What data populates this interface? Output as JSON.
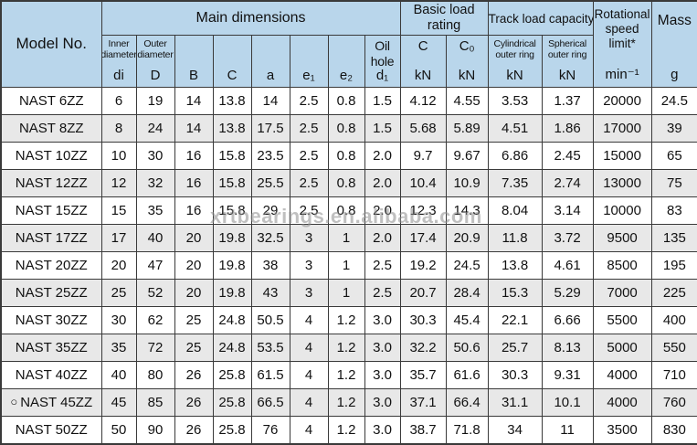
{
  "watermark": "xrtbearings.en.alibaba.com",
  "colors": {
    "header_blue": "#b9d6eb",
    "stripe_gray": "#e8e8e8",
    "grid_line": "#3a3a3a"
  },
  "table": {
    "header": {
      "model_no": "Model No.",
      "main_dimensions": "Main dimensions",
      "basic_load_rating": "Basic load rating",
      "track_load_capacity": "Track load capacity",
      "rotational_speed_limit": "Rotational speed limit*",
      "rotational_speed_unit": "min⁻¹",
      "mass": "Mass",
      "mass_unit": "g",
      "subcolumns": [
        {
          "label": "Inner diameter",
          "symbol": "di"
        },
        {
          "label": "Outer diameter",
          "symbol": "D"
        },
        {
          "label": "",
          "symbol": "B"
        },
        {
          "label": "",
          "symbol": "C"
        },
        {
          "label": "",
          "symbol": "a"
        },
        {
          "label": "",
          "symbol": "e₁"
        },
        {
          "label": "",
          "symbol": "e₂"
        },
        {
          "label": "Oil hole",
          "symbol": "d₁"
        },
        {
          "label": "C",
          "symbol": "kN"
        },
        {
          "label": "C₀",
          "symbol": "kN"
        },
        {
          "label": "Cylindrical outer ring",
          "symbol": "kN"
        },
        {
          "label": "Spherical outer ring",
          "symbol": "kN"
        }
      ]
    },
    "rows": [
      {
        "marker": "",
        "model": "NAST 6ZZ",
        "values": [
          "6",
          "19",
          "14",
          "13.8",
          "14",
          "2.5",
          "0.8",
          "1.5",
          "4.12",
          "4.55",
          "3.53",
          "1.37",
          "20000",
          "24.5"
        ]
      },
      {
        "marker": "",
        "model": "NAST 8ZZ",
        "values": [
          "8",
          "24",
          "14",
          "13.8",
          "17.5",
          "2.5",
          "0.8",
          "1.5",
          "5.68",
          "5.89",
          "4.51",
          "1.86",
          "17000",
          "39"
        ]
      },
      {
        "marker": "",
        "model": "NAST 10ZZ",
        "values": [
          "10",
          "30",
          "16",
          "15.8",
          "23.5",
          "2.5",
          "0.8",
          "2.0",
          "9.7",
          "9.67",
          "6.86",
          "2.45",
          "15000",
          "65"
        ]
      },
      {
        "marker": "",
        "model": "NAST 12ZZ",
        "values": [
          "12",
          "32",
          "16",
          "15.8",
          "25.5",
          "2.5",
          "0.8",
          "2.0",
          "10.4",
          "10.9",
          "7.35",
          "2.74",
          "13000",
          "75"
        ]
      },
      {
        "marker": "",
        "model": "NAST 15ZZ",
        "values": [
          "15",
          "35",
          "16",
          "15.8",
          "29",
          "2.5",
          "0.8",
          "2.0",
          "12.3",
          "14.3",
          "8.04",
          "3.14",
          "10000",
          "83"
        ]
      },
      {
        "marker": "",
        "model": "NAST 17ZZ",
        "values": [
          "17",
          "40",
          "20",
          "19.8",
          "32.5",
          "3",
          "1",
          "2.0",
          "17.4",
          "20.9",
          "11.8",
          "3.72",
          "9500",
          "135"
        ]
      },
      {
        "marker": "",
        "model": "NAST 20ZZ",
        "values": [
          "20",
          "47",
          "20",
          "19.8",
          "38",
          "3",
          "1",
          "2.5",
          "19.2",
          "24.5",
          "13.8",
          "4.61",
          "8500",
          "195"
        ]
      },
      {
        "marker": "",
        "model": "NAST 25ZZ",
        "values": [
          "25",
          "52",
          "20",
          "19.8",
          "43",
          "3",
          "1",
          "2.5",
          "20.7",
          "28.4",
          "15.3",
          "5.29",
          "7000",
          "225"
        ]
      },
      {
        "marker": "",
        "model": "NAST 30ZZ",
        "values": [
          "30",
          "62",
          "25",
          "24.8",
          "50.5",
          "4",
          "1.2",
          "3.0",
          "30.3",
          "45.4",
          "22.1",
          "6.66",
          "5500",
          "400"
        ]
      },
      {
        "marker": "",
        "model": "NAST 35ZZ",
        "values": [
          "35",
          "72",
          "25",
          "24.8",
          "53.5",
          "4",
          "1.2",
          "3.0",
          "32.2",
          "50.6",
          "25.7",
          "8.13",
          "5000",
          "550"
        ]
      },
      {
        "marker": "",
        "model": "NAST 40ZZ",
        "values": [
          "40",
          "80",
          "26",
          "25.8",
          "61.5",
          "4",
          "1.2",
          "3.0",
          "35.7",
          "61.6",
          "30.3",
          "9.31",
          "4000",
          "710"
        ]
      },
      {
        "marker": "○",
        "model": "NAST 45ZZ",
        "values": [
          "45",
          "85",
          "26",
          "25.8",
          "66.5",
          "4",
          "1.2",
          "3.0",
          "37.1",
          "66.4",
          "31.1",
          "10.1",
          "4000",
          "760"
        ]
      },
      {
        "marker": "",
        "model": "NAST 50ZZ",
        "values": [
          "50",
          "90",
          "26",
          "25.8",
          "76",
          "4",
          "1.2",
          "3.0",
          "38.7",
          "71.8",
          "34",
          "11",
          "3500",
          "830"
        ]
      }
    ]
  }
}
